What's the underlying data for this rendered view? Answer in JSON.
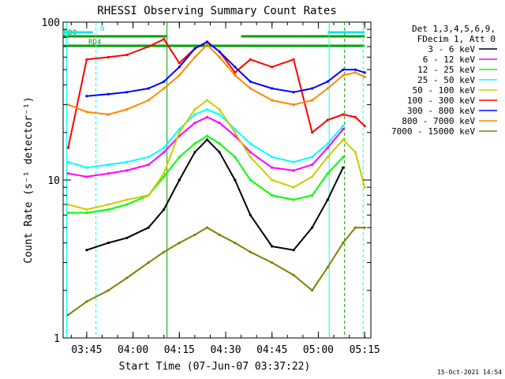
{
  "chart_data": {
    "type": "line",
    "title": "RHESSI Observing Summary Count Rates",
    "xlabel": "Start Time (07-Jun-07 03:37:22)",
    "ylabel": "Count Rate (s⁻¹ detector⁻¹)",
    "yscale": "log",
    "ylim": [
      1,
      100
    ],
    "xlim": [
      "03:37:22",
      "05:17:00"
    ],
    "grid": false,
    "legend_position": "right",
    "x_ticks": [
      "03:45",
      "04:00",
      "04:15",
      "04:30",
      "04:45",
      "05:00",
      "05:15"
    ],
    "y_ticks": [
      "1",
      "10",
      "100"
    ],
    "footer_text": "15-Oct-2021 14:54",
    "legend_header": [
      "Det 1,3,4,5,6,9,",
      "FDecim 1, Att 0"
    ],
    "flags": [
      {
        "name": "RD0",
        "color": "#00a000",
        "segments": [
          [
            "03:37:22",
            "04:11:00"
          ],
          [
            "04:35:00",
            "04:55:00"
          ],
          [
            "04:55:00",
            "05:15:00"
          ]
        ]
      },
      {
        "name": "RD4",
        "color": "#00a000",
        "segments": [
          [
            "03:37:22",
            "04:11:00"
          ],
          [
            "04:11:00",
            "04:55:00"
          ],
          [
            "04:55:00",
            "05:15:00"
          ]
        ]
      },
      {
        "name": "N",
        "color": "#00e8e8",
        "segments": [
          [
            "03:37:22",
            "03:47:00"
          ],
          [
            "05:03:00",
            "05:15:00"
          ]
        ]
      }
    ],
    "x": [
      "03:39",
      "03:45",
      "03:52",
      "03:58",
      "04:05",
      "04:10",
      "04:15",
      "04:20",
      "04:24",
      "04:28",
      "04:33",
      "04:38",
      "04:45",
      "04:52",
      "04:58",
      "05:03",
      "05:08",
      "05:12",
      "05:15"
    ],
    "series": [
      {
        "name": "3 - 6 keV",
        "color": "#000000",
        "values": [
          null,
          3.6,
          4.0,
          4.3,
          5.0,
          6.5,
          10,
          15,
          18,
          15,
          10,
          6.0,
          3.8,
          3.6,
          5.0,
          7.5,
          12,
          null,
          null
        ]
      },
      {
        "name": "6 - 12 keV",
        "color": "#ff00ff",
        "values": [
          11,
          10.5,
          11,
          11.5,
          12.5,
          15,
          19,
          23,
          25,
          23,
          19,
          15,
          12,
          11.5,
          12.5,
          16,
          21,
          null,
          null
        ]
      },
      {
        "name": "12 - 25 keV",
        "color": "#00ff00",
        "values": [
          6.2,
          6.2,
          6.5,
          7.0,
          8.0,
          10.5,
          14,
          17,
          19,
          17,
          14,
          10,
          8.0,
          7.5,
          8.0,
          11,
          14,
          null,
          null
        ]
      },
      {
        "name": "25 - 50 keV",
        "color": "#00ffff",
        "values": [
          13,
          12,
          12.5,
          13,
          14,
          16,
          21,
          26,
          28,
          26,
          21,
          17,
          14,
          13,
          14,
          17,
          22,
          null,
          null
        ]
      },
      {
        "name": "50 - 100 keV",
        "color": "#cccc00",
        "values": [
          7.0,
          6.5,
          7.0,
          7.5,
          8.0,
          11,
          20,
          28,
          32,
          28,
          20,
          14,
          10,
          9.0,
          10.5,
          14,
          18,
          15,
          9.0
        ]
      },
      {
        "name": "100 - 300 keV",
        "color": "#ff0000",
        "values": [
          16,
          58,
          60,
          62,
          70,
          78,
          55,
          68,
          75,
          65,
          48,
          58,
          52,
          58,
          20,
          24,
          26,
          25,
          22
        ]
      },
      {
        "name": "300 - 800 keV",
        "color": "#0000ff",
        "values": [
          null,
          34,
          35,
          36,
          38,
          42,
          52,
          68,
          75,
          65,
          52,
          42,
          38,
          36,
          38,
          42,
          50,
          50,
          48
        ]
      },
      {
        "name": "800 - 7000 keV",
        "color": "#ff8800",
        "values": [
          30,
          27,
          26,
          28,
          32,
          38,
          46,
          60,
          72,
          60,
          46,
          38,
          32,
          30,
          32,
          38,
          46,
          48,
          45
        ]
      },
      {
        "name": "7000 - 15000 keV",
        "color": "#808000",
        "values": [
          1.4,
          1.7,
          2.0,
          2.4,
          3.0,
          3.5,
          4.0,
          4.5,
          5.0,
          4.5,
          4.0,
          3.5,
          3.0,
          2.5,
          2.0,
          2.8,
          4.0,
          5.0,
          5.0
        ]
      }
    ]
  }
}
